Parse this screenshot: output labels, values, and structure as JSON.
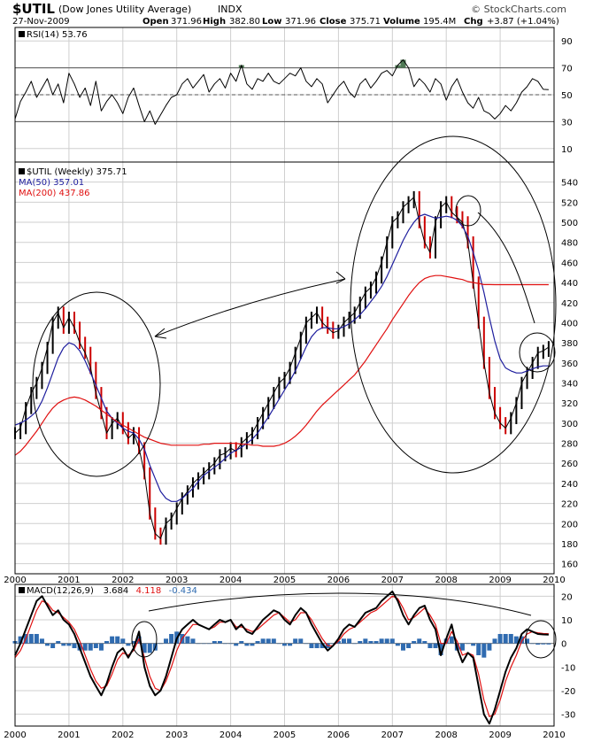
{
  "header": {
    "symbol": "$UTIL",
    "name": "(Dow Jones Utility Average)",
    "exchange": "INDX",
    "date": "27-Nov-2009",
    "watermark": "© StockCharts.com",
    "open_label": "Open",
    "open": "371.96",
    "high_label": "High",
    "high": "382.80",
    "low_label": "Low",
    "low": "371.96",
    "close_label": "Close",
    "close": "375.71",
    "volume_label": "Volume",
    "volume": "195.4M",
    "chg_label": "Chg",
    "chg": "+3.87 (+1.04%)"
  },
  "colors": {
    "price": "#000000",
    "down_bar": "#cc0000",
    "ma50": "#1e1e9e",
    "ma200": "#e01010",
    "macd": "#000000",
    "signal": "#e01010",
    "histogram": "#2f6bb0",
    "rsi_fill": "#4f7a55",
    "grid": "#cfcfcf",
    "annotation": "#000000"
  },
  "chart_data": [
    {
      "type": "line",
      "panel": "rsi",
      "legend": "RSI(14) 53.76",
      "ylim": [
        0,
        100
      ],
      "yticks": [
        10,
        30,
        50,
        70,
        90
      ],
      "reference_lines": [
        30,
        50,
        70
      ],
      "x": [
        2000.0,
        2000.1,
        2000.2,
        2000.3,
        2000.4,
        2000.5,
        2000.6,
        2000.7,
        2000.8,
        2000.9,
        2001.0,
        2001.1,
        2001.2,
        2001.3,
        2001.4,
        2001.5,
        2001.6,
        2001.7,
        2001.8,
        2001.9,
        2002.0,
        2002.1,
        2002.2,
        2002.3,
        2002.4,
        2002.5,
        2002.6,
        2002.7,
        2002.8,
        2002.9,
        2003.0,
        2003.1,
        2003.2,
        2003.3,
        2003.4,
        2003.5,
        2003.6,
        2003.7,
        2003.8,
        2003.9,
        2004.0,
        2004.1,
        2004.2,
        2004.3,
        2004.4,
        2004.5,
        2004.6,
        2004.7,
        2004.8,
        2004.9,
        2005.0,
        2005.1,
        2005.2,
        2005.3,
        2005.4,
        2005.5,
        2005.6,
        2005.7,
        2005.8,
        2005.9,
        2006.0,
        2006.1,
        2006.2,
        2006.3,
        2006.4,
        2006.5,
        2006.6,
        2006.7,
        2006.8,
        2006.9,
        2007.0,
        2007.1,
        2007.2,
        2007.3,
        2007.4,
        2007.5,
        2007.6,
        2007.7,
        2007.8,
        2007.9,
        2008.0,
        2008.1,
        2008.2,
        2008.3,
        2008.4,
        2008.5,
        2008.6,
        2008.7,
        2008.8,
        2008.9,
        2009.0,
        2009.1,
        2009.2,
        2009.3,
        2009.4,
        2009.5,
        2009.6,
        2009.7,
        2009.8,
        2009.9
      ],
      "y": [
        32,
        45,
        52,
        60,
        48,
        55,
        62,
        50,
        58,
        44,
        66,
        58,
        48,
        55,
        42,
        60,
        38,
        45,
        50,
        44,
        36,
        48,
        55,
        42,
        30,
        38,
        28,
        35,
        42,
        48,
        50,
        58,
        62,
        55,
        60,
        65,
        52,
        58,
        62,
        55,
        66,
        60,
        72,
        58,
        54,
        62,
        60,
        66,
        60,
        58,
        62,
        66,
        64,
        70,
        60,
        56,
        62,
        58,
        44,
        50,
        56,
        60,
        52,
        48,
        58,
        62,
        55,
        60,
        66,
        68,
        64,
        72,
        76,
        70,
        56,
        62,
        58,
        52,
        62,
        58,
        46,
        56,
        62,
        52,
        44,
        40,
        48,
        38,
        36,
        32,
        36,
        42,
        38,
        44,
        52,
        56,
        62,
        60,
        54,
        53.76
      ]
    },
    {
      "type": "line",
      "panel": "price",
      "title": "$UTIL (Weekly) 375.71",
      "legend": [
        "$UTIL (Weekly) 375.71",
        "MA(50) 357.01",
        "MA(200) 437.86"
      ],
      "xlim": [
        2000,
        2010
      ],
      "ylim": [
        150,
        560
      ],
      "yticks": [
        160,
        180,
        200,
        220,
        240,
        260,
        280,
        300,
        320,
        340,
        360,
        380,
        400,
        420,
        440,
        460,
        480,
        500,
        520,
        540
      ],
      "xticks": [
        "2000",
        "2001",
        "2002",
        "2003",
        "2004",
        "2005",
        "2006",
        "2007",
        "2008",
        "2009",
        "2010"
      ],
      "x": [
        2000.0,
        2000.1,
        2000.2,
        2000.3,
        2000.4,
        2000.5,
        2000.6,
        2000.7,
        2000.8,
        2000.9,
        2001.0,
        2001.1,
        2001.2,
        2001.3,
        2001.4,
        2001.5,
        2001.6,
        2001.7,
        2001.8,
        2001.9,
        2002.0,
        2002.1,
        2002.2,
        2002.3,
        2002.4,
        2002.5,
        2002.6,
        2002.7,
        2002.8,
        2002.9,
        2003.0,
        2003.1,
        2003.2,
        2003.3,
        2003.4,
        2003.5,
        2003.6,
        2003.7,
        2003.8,
        2003.9,
        2004.0,
        2004.1,
        2004.2,
        2004.3,
        2004.4,
        2004.5,
        2004.6,
        2004.7,
        2004.8,
        2004.9,
        2005.0,
        2005.1,
        2005.2,
        2005.3,
        2005.4,
        2005.5,
        2005.6,
        2005.7,
        2005.8,
        2005.9,
        2006.0,
        2006.1,
        2006.2,
        2006.3,
        2006.4,
        2006.5,
        2006.6,
        2006.7,
        2006.8,
        2006.9,
        2007.0,
        2007.1,
        2007.2,
        2007.3,
        2007.4,
        2007.5,
        2007.6,
        2007.7,
        2007.8,
        2007.9,
        2008.0,
        2008.1,
        2008.2,
        2008.3,
        2008.4,
        2008.5,
        2008.6,
        2008.7,
        2008.8,
        2008.9,
        2009.0,
        2009.1,
        2009.2,
        2009.3,
        2009.4,
        2009.5,
        2009.6,
        2009.7,
        2009.8,
        2009.9
      ],
      "series": [
        {
          "name": "$UTIL (Weekly) 375.71",
          "values": [
            290,
            295,
            315,
            330,
            340,
            355,
            375,
            400,
            410,
            395,
            405,
            395,
            380,
            370,
            355,
            330,
            310,
            290,
            300,
            305,
            295,
            285,
            290,
            275,
            250,
            210,
            190,
            185,
            200,
            205,
            215,
            225,
            232,
            240,
            245,
            250,
            255,
            260,
            268,
            270,
            275,
            272,
            280,
            285,
            290,
            300,
            310,
            320,
            330,
            340,
            345,
            355,
            370,
            385,
            400,
            405,
            410,
            400,
            395,
            390,
            392,
            400,
            405,
            410,
            420,
            430,
            435,
            445,
            460,
            480,
            500,
            505,
            515,
            520,
            525,
            500,
            480,
            470,
            500,
            515,
            520,
            510,
            505,
            500,
            480,
            440,
            400,
            360,
            330,
            310,
            300,
            295,
            305,
            320,
            340,
            350,
            360,
            370,
            372,
            375.71
          ]
        },
        {
          "name": "MA(50) 357.01",
          "values": [
            298,
            300,
            303,
            307,
            312,
            322,
            335,
            350,
            365,
            375,
            380,
            378,
            372,
            362,
            350,
            338,
            325,
            312,
            305,
            300,
            295,
            292,
            290,
            284,
            274,
            258,
            245,
            232,
            225,
            222,
            222,
            225,
            230,
            235,
            242,
            248,
            252,
            256,
            260,
            265,
            270,
            273,
            276,
            280,
            284,
            290,
            298,
            306,
            315,
            324,
            333,
            342,
            352,
            364,
            376,
            386,
            392,
            395,
            395,
            394,
            394,
            396,
            399,
            403,
            408,
            414,
            421,
            428,
            436,
            446,
            458,
            470,
            482,
            492,
            500,
            506,
            508,
            506,
            504,
            505,
            506,
            505,
            502,
            496,
            486,
            470,
            452,
            430,
            405,
            382,
            364,
            355,
            352,
            350,
            350,
            352,
            354,
            356,
            357,
            357.01
          ]
        },
        {
          "name": "MA(200) 437.86",
          "values": [
            268,
            272,
            278,
            285,
            292,
            300,
            308,
            315,
            320,
            323,
            325,
            326,
            325,
            323,
            320,
            317,
            313,
            309,
            305,
            301,
            298,
            295,
            292,
            289,
            286,
            284,
            282,
            280,
            279,
            278,
            278,
            278,
            278,
            278,
            278,
            279,
            279,
            280,
            280,
            280,
            280,
            280,
            279,
            279,
            278,
            278,
            277,
            277,
            277,
            278,
            280,
            283,
            287,
            292,
            298,
            305,
            312,
            318,
            323,
            328,
            333,
            338,
            343,
            348,
            355,
            362,
            370,
            378,
            386,
            394,
            403,
            411,
            419,
            427,
            434,
            440,
            444,
            446,
            447,
            447,
            446,
            445,
            444,
            443,
            441,
            440,
            439,
            438,
            438,
            437.86,
            437.9,
            437.9,
            437.9,
            437.9,
            437.9,
            437.9,
            437.9,
            437.9,
            437.9,
            437.86
          ]
        }
      ]
    },
    {
      "type": "line",
      "panel": "macd",
      "legend": [
        "MACD(12,26,9)",
        "3.684",
        "4.118",
        "-0.434"
      ],
      "ylim": [
        -35,
        25
      ],
      "yticks": [
        -30,
        -20,
        -10,
        0,
        10,
        20
      ],
      "xticks": [
        "2000",
        "2001",
        "2002",
        "2003",
        "2004",
        "2005",
        "2006",
        "2007",
        "2008",
        "2009",
        "2010"
      ],
      "x": [
        2000.0,
        2000.1,
        2000.2,
        2000.3,
        2000.4,
        2000.5,
        2000.6,
        2000.7,
        2000.8,
        2000.9,
        2001.0,
        2001.1,
        2001.2,
        2001.3,
        2001.4,
        2001.5,
        2001.6,
        2001.7,
        2001.8,
        2001.9,
        2002.0,
        2002.1,
        2002.2,
        2002.3,
        2002.4,
        2002.5,
        2002.6,
        2002.7,
        2002.8,
        2002.9,
        2003.0,
        2003.1,
        2003.2,
        2003.3,
        2003.4,
        2003.5,
        2003.6,
        2003.7,
        2003.8,
        2003.9,
        2004.0,
        2004.1,
        2004.2,
        2004.3,
        2004.4,
        2004.5,
        2004.6,
        2004.7,
        2004.8,
        2004.9,
        2005.0,
        2005.1,
        2005.2,
        2005.3,
        2005.4,
        2005.5,
        2005.6,
        2005.7,
        2005.8,
        2005.9,
        2006.0,
        2006.1,
        2006.2,
        2006.3,
        2006.4,
        2006.5,
        2006.6,
        2006.7,
        2006.8,
        2006.9,
        2007.0,
        2007.1,
        2007.2,
        2007.3,
        2007.4,
        2007.5,
        2007.6,
        2007.7,
        2007.8,
        2007.9,
        2008.0,
        2008.1,
        2008.2,
        2008.3,
        2008.4,
        2008.5,
        2008.6,
        2008.7,
        2008.8,
        2008.9,
        2009.0,
        2009.1,
        2009.2,
        2009.3,
        2009.4,
        2009.5,
        2009.6,
        2009.7,
        2009.8,
        2009.9
      ],
      "series": [
        {
          "name": "MACD(12,26,9)",
          "values": [
            -5,
            0,
            6,
            12,
            18,
            20,
            16,
            12,
            14,
            10,
            8,
            4,
            -2,
            -8,
            -14,
            -18,
            -22,
            -17,
            -10,
            -4,
            -2,
            -6,
            -2,
            5,
            -10,
            -18,
            -22,
            -20,
            -14,
            -6,
            2,
            6,
            8,
            10,
            8,
            7,
            6,
            8,
            10,
            9,
            10,
            6,
            8,
            5,
            4,
            7,
            10,
            12,
            14,
            13,
            10,
            8,
            12,
            15,
            13,
            8,
            4,
            0,
            -3,
            -1,
            2,
            6,
            8,
            7,
            10,
            13,
            14,
            15,
            18,
            20,
            22,
            18,
            12,
            8,
            12,
            15,
            16,
            10,
            6,
            -5,
            2,
            8,
            -2,
            -8,
            -4,
            -6,
            -18,
            -30,
            -34,
            -28,
            -20,
            -12,
            -6,
            -2,
            4,
            6,
            5,
            4,
            3.8,
            3.684
          ]
        },
        {
          "name": "4.118",
          "values": [
            -6,
            -3,
            2,
            8,
            14,
            18,
            17,
            14,
            13,
            11,
            9,
            6,
            1,
            -5,
            -11,
            -16,
            -19,
            -18,
            -13,
            -7,
            -4,
            -5,
            -3,
            2,
            -6,
            -14,
            -19,
            -20,
            -16,
            -10,
            -3,
            2,
            5,
            8,
            8,
            7,
            6,
            7,
            9,
            9,
            10,
            7,
            7,
            6,
            5,
            6,
            8,
            10,
            12,
            13,
            11,
            9,
            10,
            13,
            13,
            10,
            6,
            2,
            -1,
            -1,
            1,
            4,
            6,
            7,
            9,
            11,
            13,
            14,
            16,
            18,
            20,
            19,
            15,
            10,
            11,
            13,
            15,
            12,
            8,
            0,
            0,
            5,
            1,
            -5,
            -4,
            -5,
            -13,
            -24,
            -31,
            -30,
            -24,
            -16,
            -10,
            -5,
            1,
            4,
            5,
            4.5,
            4.2,
            4.118
          ]
        },
        {
          "name": "-0.434",
          "values": [
            1,
            3,
            4,
            4,
            4,
            2,
            -1,
            -2,
            1,
            -1,
            -1,
            -2,
            -3,
            -3,
            -3,
            -2,
            -3,
            1,
            3,
            3,
            2,
            -1,
            1,
            3,
            -4,
            -4,
            -3,
            0,
            2,
            4,
            5,
            4,
            3,
            2,
            0,
            0,
            0,
            1,
            1,
            0,
            0,
            -1,
            1,
            -1,
            -1,
            1,
            2,
            2,
            2,
            0,
            -1,
            -1,
            2,
            2,
            0,
            -2,
            -2,
            -2,
            -2,
            0,
            1,
            2,
            2,
            0,
            1,
            2,
            1,
            1,
            2,
            2,
            2,
            -1,
            -3,
            -2,
            1,
            2,
            1,
            -2,
            -2,
            -5,
            2,
            3,
            -3,
            -3,
            0,
            -1,
            -5,
            -6,
            -3,
            2,
            4,
            4,
            4,
            3,
            3,
            2,
            0,
            -0.5,
            -0.4,
            -0.434
          ]
        }
      ]
    }
  ]
}
